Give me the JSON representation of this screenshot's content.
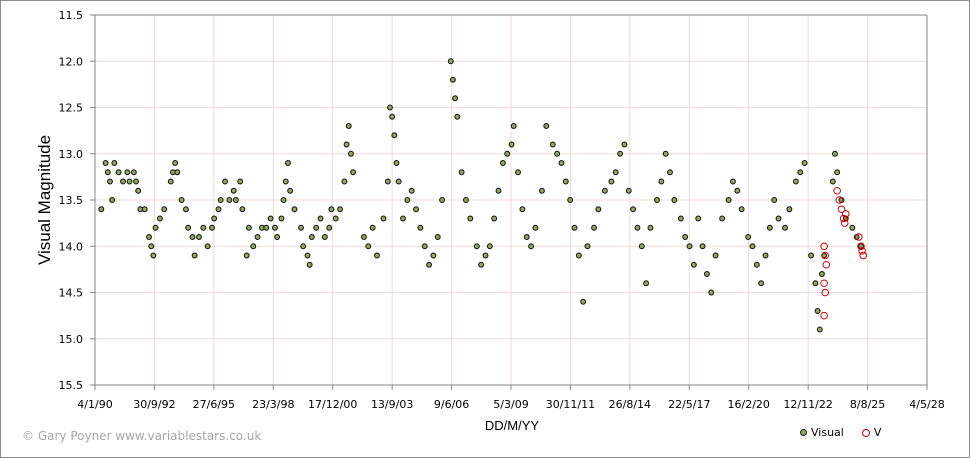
{
  "chart_data": {
    "type": "scatter",
    "title": "",
    "xlabel": "DD/M/YY",
    "ylabel": "Visual Magnitude",
    "ylim": [
      15.5,
      11.5
    ],
    "y_inverted": true,
    "yticks": [
      "11.5",
      "12.0",
      "12.5",
      "13.0",
      "13.5",
      "14.0",
      "14.5",
      "15.0",
      "15.5"
    ],
    "xticks": [
      "4/1/90",
      "30/9/92",
      "27/6/95",
      "23/3/98",
      "17/12/00",
      "13/9/03",
      "9/6/06",
      "5/3/09",
      "30/11/11",
      "26/8/14",
      "22/5/17",
      "16/2/20",
      "12/11/22",
      "8/8/25",
      "4/5/28"
    ],
    "grid": true,
    "legend_position": "bottom-right",
    "legend": [
      "Visual",
      "V"
    ],
    "series": [
      {
        "name": "Visual",
        "marker": "filled-circle",
        "color": "#8fae5a",
        "edge": "#1a1a1a",
        "points_approx_year_mag": [
          [
            1990.3,
            13.6
          ],
          [
            1990.5,
            13.1
          ],
          [
            1990.6,
            13.2
          ],
          [
            1990.7,
            13.3
          ],
          [
            1990.8,
            13.5
          ],
          [
            1990.9,
            13.1
          ],
          [
            1991.1,
            13.2
          ],
          [
            1991.3,
            13.3
          ],
          [
            1991.5,
            13.2
          ],
          [
            1991.6,
            13.3
          ],
          [
            1991.8,
            13.2
          ],
          [
            1991.9,
            13.3
          ],
          [
            1992.0,
            13.4
          ],
          [
            1992.1,
            13.6
          ],
          [
            1992.3,
            13.6
          ],
          [
            1992.5,
            13.9
          ],
          [
            1992.6,
            14.0
          ],
          [
            1992.7,
            14.1
          ],
          [
            1992.8,
            13.8
          ],
          [
            1993.0,
            13.7
          ],
          [
            1993.2,
            13.6
          ],
          [
            1993.5,
            13.3
          ],
          [
            1993.6,
            13.2
          ],
          [
            1993.7,
            13.1
          ],
          [
            1993.8,
            13.2
          ],
          [
            1994.0,
            13.5
          ],
          [
            1994.2,
            13.6
          ],
          [
            1994.3,
            13.8
          ],
          [
            1994.5,
            13.9
          ],
          [
            1994.6,
            14.1
          ],
          [
            1994.8,
            13.9
          ],
          [
            1995.0,
            13.8
          ],
          [
            1995.2,
            14.0
          ],
          [
            1995.4,
            13.8
          ],
          [
            1995.5,
            13.7
          ],
          [
            1995.7,
            13.6
          ],
          [
            1995.8,
            13.5
          ],
          [
            1996.0,
            13.3
          ],
          [
            1996.2,
            13.5
          ],
          [
            1996.4,
            13.4
          ],
          [
            1996.5,
            13.5
          ],
          [
            1996.7,
            13.3
          ],
          [
            1996.8,
            13.6
          ],
          [
            1997.0,
            14.1
          ],
          [
            1997.1,
            13.8
          ],
          [
            1997.3,
            14.0
          ],
          [
            1997.5,
            13.9
          ],
          [
            1997.7,
            13.8
          ],
          [
            1997.9,
            13.8
          ],
          [
            1998.1,
            13.7
          ],
          [
            1998.3,
            13.8
          ],
          [
            1998.4,
            13.9
          ],
          [
            1998.6,
            13.7
          ],
          [
            1998.7,
            13.5
          ],
          [
            1998.8,
            13.3
          ],
          [
            1998.9,
            13.1
          ],
          [
            1999.0,
            13.4
          ],
          [
            1999.2,
            13.6
          ],
          [
            1999.5,
            13.8
          ],
          [
            1999.6,
            14.0
          ],
          [
            1999.8,
            14.1
          ],
          [
            1999.9,
            14.2
          ],
          [
            2000.0,
            13.9
          ],
          [
            2000.2,
            13.8
          ],
          [
            2000.4,
            13.7
          ],
          [
            2000.6,
            13.9
          ],
          [
            2000.8,
            13.8
          ],
          [
            2000.9,
            13.6
          ],
          [
            2001.1,
            13.7
          ],
          [
            2001.3,
            13.6
          ],
          [
            2001.5,
            13.3
          ],
          [
            2001.6,
            12.9
          ],
          [
            2001.7,
            12.7
          ],
          [
            2001.8,
            13.0
          ],
          [
            2001.9,
            13.2
          ],
          [
            2002.4,
            13.9
          ],
          [
            2002.6,
            14.0
          ],
          [
            2002.8,
            13.8
          ],
          [
            2003.0,
            14.1
          ],
          [
            2003.3,
            13.7
          ],
          [
            2003.5,
            13.3
          ],
          [
            2003.6,
            12.5
          ],
          [
            2003.7,
            12.6
          ],
          [
            2003.8,
            12.8
          ],
          [
            2003.9,
            13.1
          ],
          [
            2004.0,
            13.3
          ],
          [
            2004.2,
            13.7
          ],
          [
            2004.4,
            13.5
          ],
          [
            2004.6,
            13.4
          ],
          [
            2004.8,
            13.6
          ],
          [
            2005.0,
            13.8
          ],
          [
            2005.2,
            14.0
          ],
          [
            2005.4,
            14.2
          ],
          [
            2005.6,
            14.1
          ],
          [
            2005.8,
            13.9
          ],
          [
            2006.0,
            13.5
          ],
          [
            2006.4,
            12.0
          ],
          [
            2006.5,
            12.2
          ],
          [
            2006.6,
            12.4
          ],
          [
            2006.7,
            12.6
          ],
          [
            2006.9,
            13.2
          ],
          [
            2007.1,
            13.5
          ],
          [
            2007.3,
            13.7
          ],
          [
            2007.6,
            14.0
          ],
          [
            2007.8,
            14.2
          ],
          [
            2008.0,
            14.1
          ],
          [
            2008.2,
            14.0
          ],
          [
            2008.4,
            13.7
          ],
          [
            2008.6,
            13.4
          ],
          [
            2008.8,
            13.1
          ],
          [
            2009.0,
            13.0
          ],
          [
            2009.2,
            12.9
          ],
          [
            2009.3,
            12.7
          ],
          [
            2009.5,
            13.2
          ],
          [
            2009.7,
            13.6
          ],
          [
            2009.9,
            13.9
          ],
          [
            2010.1,
            14.0
          ],
          [
            2010.3,
            13.8
          ],
          [
            2010.6,
            13.4
          ],
          [
            2010.8,
            12.7
          ],
          [
            2011.1,
            12.9
          ],
          [
            2011.3,
            13.0
          ],
          [
            2011.5,
            13.1
          ],
          [
            2011.7,
            13.3
          ],
          [
            2011.9,
            13.5
          ],
          [
            2012.1,
            13.8
          ],
          [
            2012.3,
            14.1
          ],
          [
            2012.5,
            14.6
          ],
          [
            2012.7,
            14.0
          ],
          [
            2013.0,
            13.8
          ],
          [
            2013.2,
            13.6
          ],
          [
            2013.5,
            13.4
          ],
          [
            2013.8,
            13.3
          ],
          [
            2014.0,
            13.2
          ],
          [
            2014.2,
            13.0
          ],
          [
            2014.4,
            12.9
          ],
          [
            2014.6,
            13.4
          ],
          [
            2014.8,
            13.6
          ],
          [
            2015.0,
            13.8
          ],
          [
            2015.2,
            14.0
          ],
          [
            2015.4,
            14.4
          ],
          [
            2015.6,
            13.8
          ],
          [
            2015.9,
            13.5
          ],
          [
            2016.1,
            13.3
          ],
          [
            2016.3,
            13.0
          ],
          [
            2016.5,
            13.2
          ],
          [
            2016.7,
            13.5
          ],
          [
            2017.0,
            13.7
          ],
          [
            2017.2,
            13.9
          ],
          [
            2017.4,
            14.0
          ],
          [
            2017.6,
            14.2
          ],
          [
            2017.8,
            13.7
          ],
          [
            2018.0,
            14.0
          ],
          [
            2018.2,
            14.3
          ],
          [
            2018.4,
            14.5
          ],
          [
            2018.6,
            14.1
          ],
          [
            2018.9,
            13.7
          ],
          [
            2019.2,
            13.5
          ],
          [
            2019.4,
            13.3
          ],
          [
            2019.6,
            13.4
          ],
          [
            2019.8,
            13.6
          ],
          [
            2020.1,
            13.9
          ],
          [
            2020.3,
            14.0
          ],
          [
            2020.5,
            14.2
          ],
          [
            2020.7,
            14.4
          ],
          [
            2020.9,
            14.1
          ],
          [
            2021.1,
            13.8
          ],
          [
            2021.3,
            13.5
          ],
          [
            2021.5,
            13.7
          ],
          [
            2021.8,
            13.8
          ],
          [
            2022.0,
            13.6
          ],
          [
            2022.3,
            13.3
          ],
          [
            2022.5,
            13.2
          ],
          [
            2022.7,
            13.1
          ],
          [
            2023.0,
            14.1
          ],
          [
            2023.2,
            14.4
          ],
          [
            2023.3,
            14.7
          ],
          [
            2023.4,
            14.9
          ],
          [
            2023.5,
            14.3
          ],
          [
            2023.6,
            14.1
          ],
          [
            2024.0,
            13.3
          ],
          [
            2024.1,
            13.0
          ],
          [
            2024.2,
            13.2
          ],
          [
            2024.4,
            13.5
          ],
          [
            2024.6,
            13.7
          ],
          [
            2024.9,
            13.8
          ],
          [
            2025.1,
            13.9
          ],
          [
            2025.3,
            14.0
          ]
        ]
      },
      {
        "name": "V",
        "marker": "open-circle",
        "color": "#cc0000",
        "points_approx_year_mag": [
          [
            2023.6,
            14.0
          ],
          [
            2023.65,
            14.1
          ],
          [
            2023.7,
            14.2
          ],
          [
            2023.6,
            14.4
          ],
          [
            2023.65,
            14.5
          ],
          [
            2023.6,
            14.75
          ],
          [
            2024.2,
            13.4
          ],
          [
            2024.3,
            13.5
          ],
          [
            2024.4,
            13.6
          ],
          [
            2024.5,
            13.7
          ],
          [
            2024.55,
            13.75
          ],
          [
            2024.6,
            13.65
          ],
          [
            2025.2,
            13.9
          ],
          [
            2025.3,
            14.0
          ],
          [
            2025.35,
            14.05
          ],
          [
            2025.4,
            14.1
          ]
        ]
      }
    ]
  },
  "footer": {
    "credit": "© Gary Poyner www.variablestars.co.uk"
  }
}
